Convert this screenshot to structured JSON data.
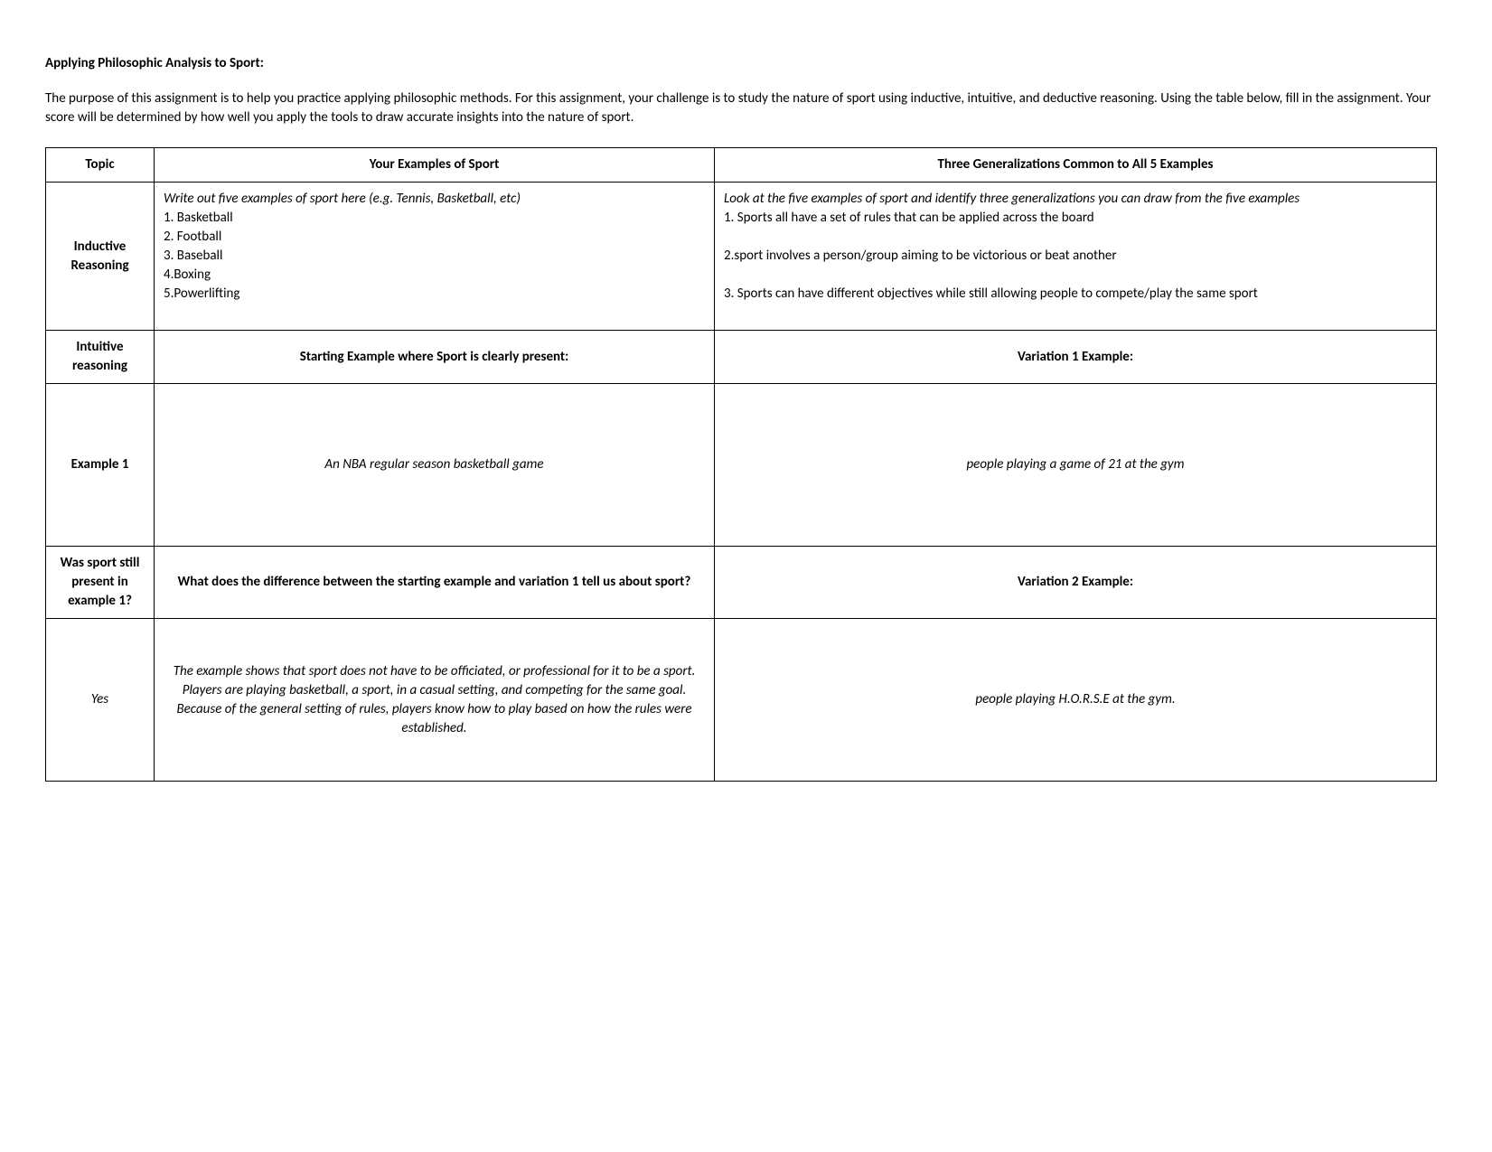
{
  "title": "Applying Philosophic Analysis to Sport:",
  "intro": "The purpose of this assignment is to help you practice applying philosophic methods. For this assignment, your challenge is to study the nature of sport using inductive, intuitive, and deductive reasoning. Using the table below, fill in the assignment. Your score will be determined by how well you apply the tools to draw accurate insights into the nature of sport.",
  "headers": {
    "topic": "Topic",
    "examples": "Your Examples of Sport",
    "generalizations": "Three Generalizations Common to All 5 Examples"
  },
  "row_inductive": {
    "label": "Inductive Reasoning",
    "examples_hint": "Write out five examples of sport here (e.g. Tennis, Basketball, etc)",
    "examples_list": "1. Basketball\n2. Football\n3. Baseball\n4.Boxing\n5.Powerlifting",
    "gen_hint": "Look at the five examples of sport and identify three generalizations you can draw from the five examples",
    "gen_list": "1. Sports all have a set of rules that can be applied across the board\n\n2.sport involves a person/group aiming to be victorious or beat another\n\n3. Sports can have different objectives while still allowing people to compete/play the same sport"
  },
  "row_intuitive": {
    "label": "Intuitive reasoning",
    "start_header": "Starting Example where Sport is clearly present:",
    "var1_header": "Variation 1 Example:"
  },
  "row_example1": {
    "label": "Example 1",
    "start_text": "An NBA regular season basketball game",
    "var1_text": "people playing a game of 21 at the gym"
  },
  "row_q1": {
    "label": "Was sport still present in example 1?",
    "mid_header": "What does the difference between the starting example and variation 1 tell us about sport?",
    "var2_header": "Variation 2 Example:"
  },
  "row_ans1": {
    "label": "Yes",
    "mid_text": "The example shows that sport does not have to be officiated, or professional for it to be a sport. Players are playing basketball, a sport, in a casual setting, and competing for the same goal. Because of the general setting of rules, players know how to play based on how the rules were established.",
    "right_text": "people playing H.O.R.S.E at the gym."
  }
}
